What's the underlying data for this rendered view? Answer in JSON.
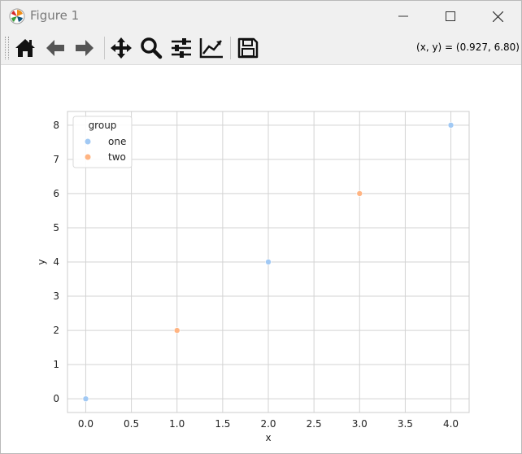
{
  "window": {
    "title": "Figure 1"
  },
  "toolbar": {
    "buttons": [
      "home-icon",
      "back-icon",
      "forward-icon",
      "pan-icon",
      "zoom-icon",
      "configure-icon",
      "edit-axes-icon",
      "save-icon"
    ],
    "coords": "(x, y) = (0.927, 6.80)"
  },
  "colors": {
    "one": "#a1c9f4",
    "two": "#ffb482",
    "grid": "#d3d3d3",
    "spine": "#cccccc"
  },
  "chart_data": {
    "type": "scatter",
    "title": "",
    "xlabel": "x",
    "ylabel": "y",
    "xlim": [
      -0.2,
      4.2
    ],
    "ylim": [
      -0.4,
      8.4
    ],
    "xticks": [
      "0.0",
      "0.5",
      "1.0",
      "1.5",
      "2.0",
      "2.5",
      "3.0",
      "3.5",
      "4.0"
    ],
    "yticks": [
      "0",
      "1",
      "2",
      "3",
      "4",
      "5",
      "6",
      "7",
      "8"
    ],
    "grid": true,
    "legend": {
      "title": "group",
      "placement": "top-left",
      "entries": [
        "one",
        "two"
      ]
    },
    "series": [
      {
        "name": "one",
        "color": "#a1c9f4",
        "x": [
          0,
          2,
          4
        ],
        "y": [
          0,
          4,
          8
        ]
      },
      {
        "name": "two",
        "color": "#ffb482",
        "x": [
          1,
          3
        ],
        "y": [
          2,
          6
        ]
      }
    ]
  }
}
